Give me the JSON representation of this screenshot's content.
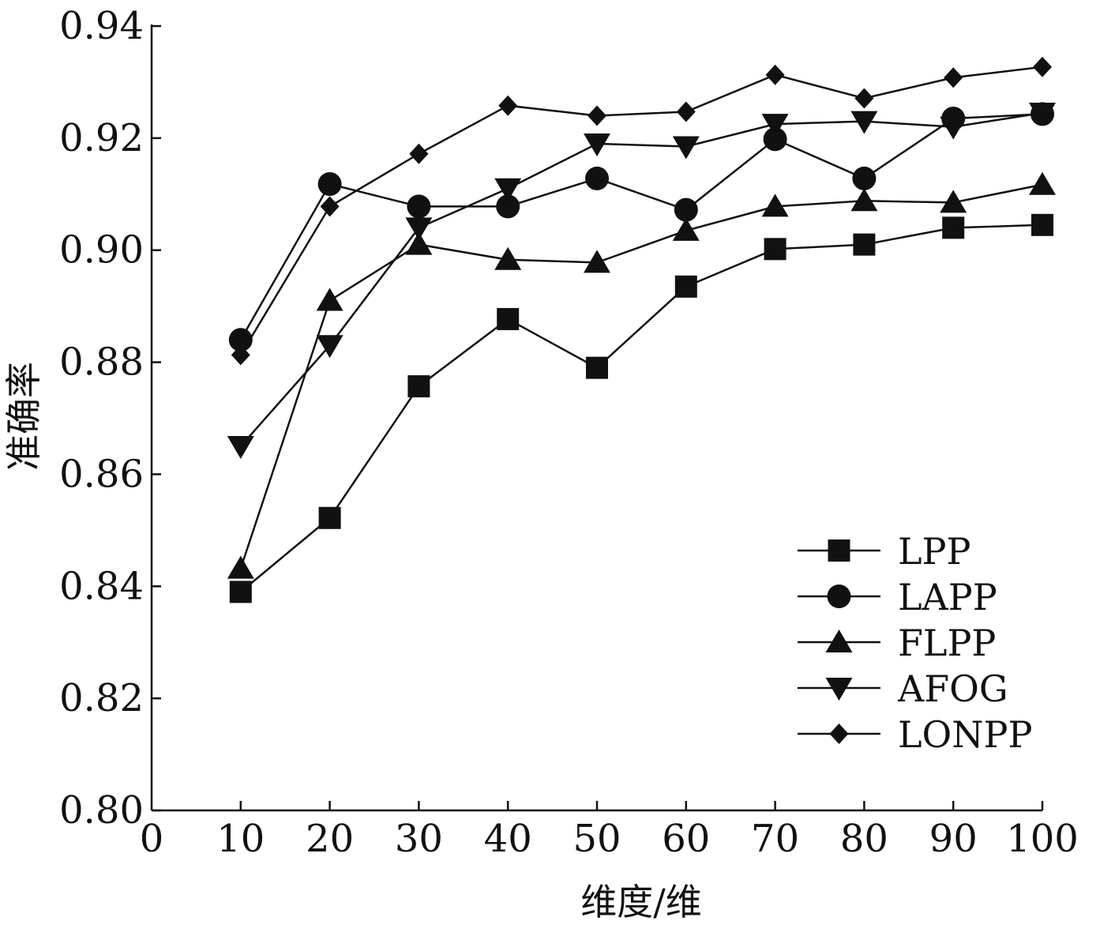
{
  "chart_data": {
    "type": "line",
    "title": "",
    "xlabel": "维度/维",
    "ylabel": "准确率",
    "xlim": [
      0,
      100
    ],
    "ylim": [
      0.8,
      0.94
    ],
    "x_ticks": [
      0,
      10,
      20,
      30,
      40,
      50,
      60,
      70,
      80,
      90,
      100
    ],
    "x_tick_labels": [
      "0",
      "10",
      "20",
      "30",
      "40",
      "50",
      "60",
      "70",
      "80",
      "90",
      "100"
    ],
    "y_ticks": [
      0.8,
      0.82,
      0.84,
      0.86,
      0.88,
      0.9,
      0.92,
      0.94
    ],
    "y_tick_labels": [
      "0.80",
      "0.82",
      "0.84",
      "0.86",
      "0.88",
      "0.90",
      "0.92",
      "0.94"
    ],
    "grid": false,
    "legend_position": "bottom-right",
    "x": [
      10,
      20,
      30,
      40,
      50,
      60,
      70,
      80,
      90,
      100
    ],
    "series": [
      {
        "name": "LPP",
        "marker": "square",
        "values": [
          0.839,
          0.8522,
          0.8757,
          0.8877,
          0.879,
          0.8935,
          0.9002,
          0.901,
          0.904,
          0.9045
        ]
      },
      {
        "name": "LAPP",
        "marker": "circle",
        "values": [
          0.884,
          0.9118,
          0.9078,
          0.9078,
          0.9128,
          0.9072,
          0.9198,
          0.9128,
          0.9235,
          0.9243
        ]
      },
      {
        "name": "FLPP",
        "marker": "triangle-up",
        "values": [
          0.8432,
          0.891,
          0.901,
          0.8983,
          0.8978,
          0.9035,
          0.9078,
          0.9088,
          0.9085,
          0.9117
        ]
      },
      {
        "name": "AFOG",
        "marker": "triangle-down",
        "values": [
          0.865,
          0.883,
          0.904,
          0.911,
          0.919,
          0.9185,
          0.9225,
          0.923,
          0.922,
          0.9245
        ]
      },
      {
        "name": "LONPP",
        "marker": "diamond",
        "values": [
          0.8813,
          0.9078,
          0.9172,
          0.9258,
          0.924,
          0.9247,
          0.9313,
          0.9271,
          0.9308,
          0.9327
        ]
      }
    ],
    "line_color": "#111111"
  }
}
